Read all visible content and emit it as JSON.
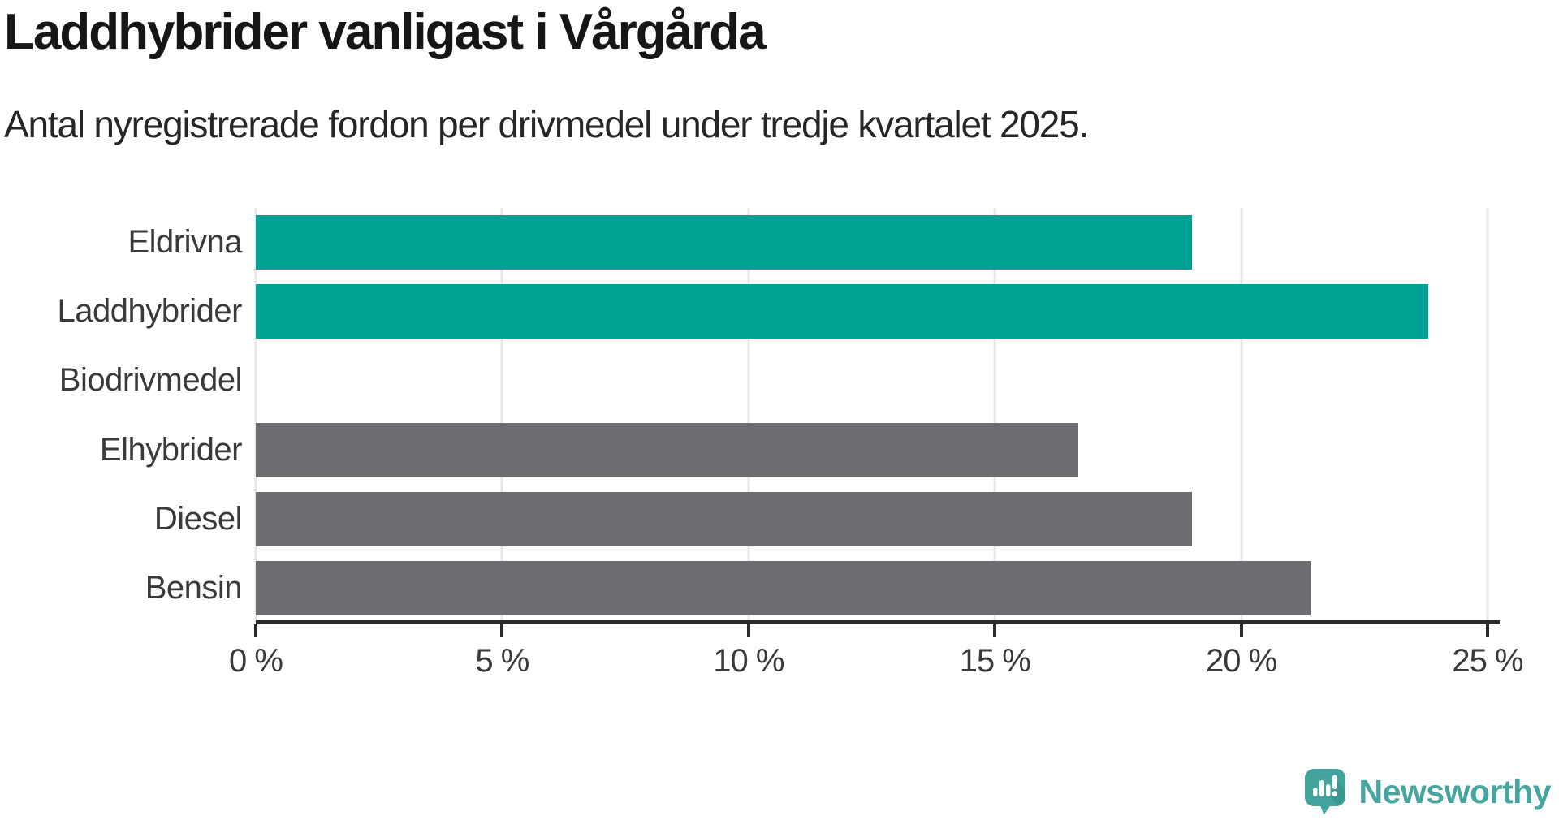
{
  "chart_data": {
    "type": "bar",
    "orientation": "horizontal",
    "title": "Laddhybrider vanligast i Vårgårda",
    "subtitle": "Antal nyregistrerade fordon per drivmedel under tredje kvartalet 2025.",
    "categories": [
      "Eldrivna",
      "Laddhybrider",
      "Biodrivmedel",
      "Elhybrider",
      "Diesel",
      "Bensin"
    ],
    "values": [
      19.0,
      23.8,
      0,
      16.7,
      19.0,
      21.4
    ],
    "unit": "%",
    "bar_colors": [
      "#00a296",
      "#00a296",
      null,
      "#6c6c71",
      "#6c6c71",
      "#6c6c71"
    ],
    "highlight_color": "#00a296",
    "default_color": "#6c6c71",
    "xlim": [
      0,
      25
    ],
    "x_ticks": [
      0,
      5,
      10,
      15,
      20,
      25
    ],
    "x_tick_labels": [
      "0 %",
      "5 %",
      "10 %",
      "15 %",
      "20 %",
      "25 %"
    ],
    "grid": "vertical",
    "gridline_color": "#e7e7e7",
    "axis_color": "#2b2b2b",
    "legend": "none"
  },
  "branding": {
    "name": "Newsworthy",
    "icon": "newsworthy-speech-bubble-barchart-icon",
    "icon_color": "#44a39c",
    "icon_shadow_color": "#379era",
    "text_color": "#48a59e"
  }
}
